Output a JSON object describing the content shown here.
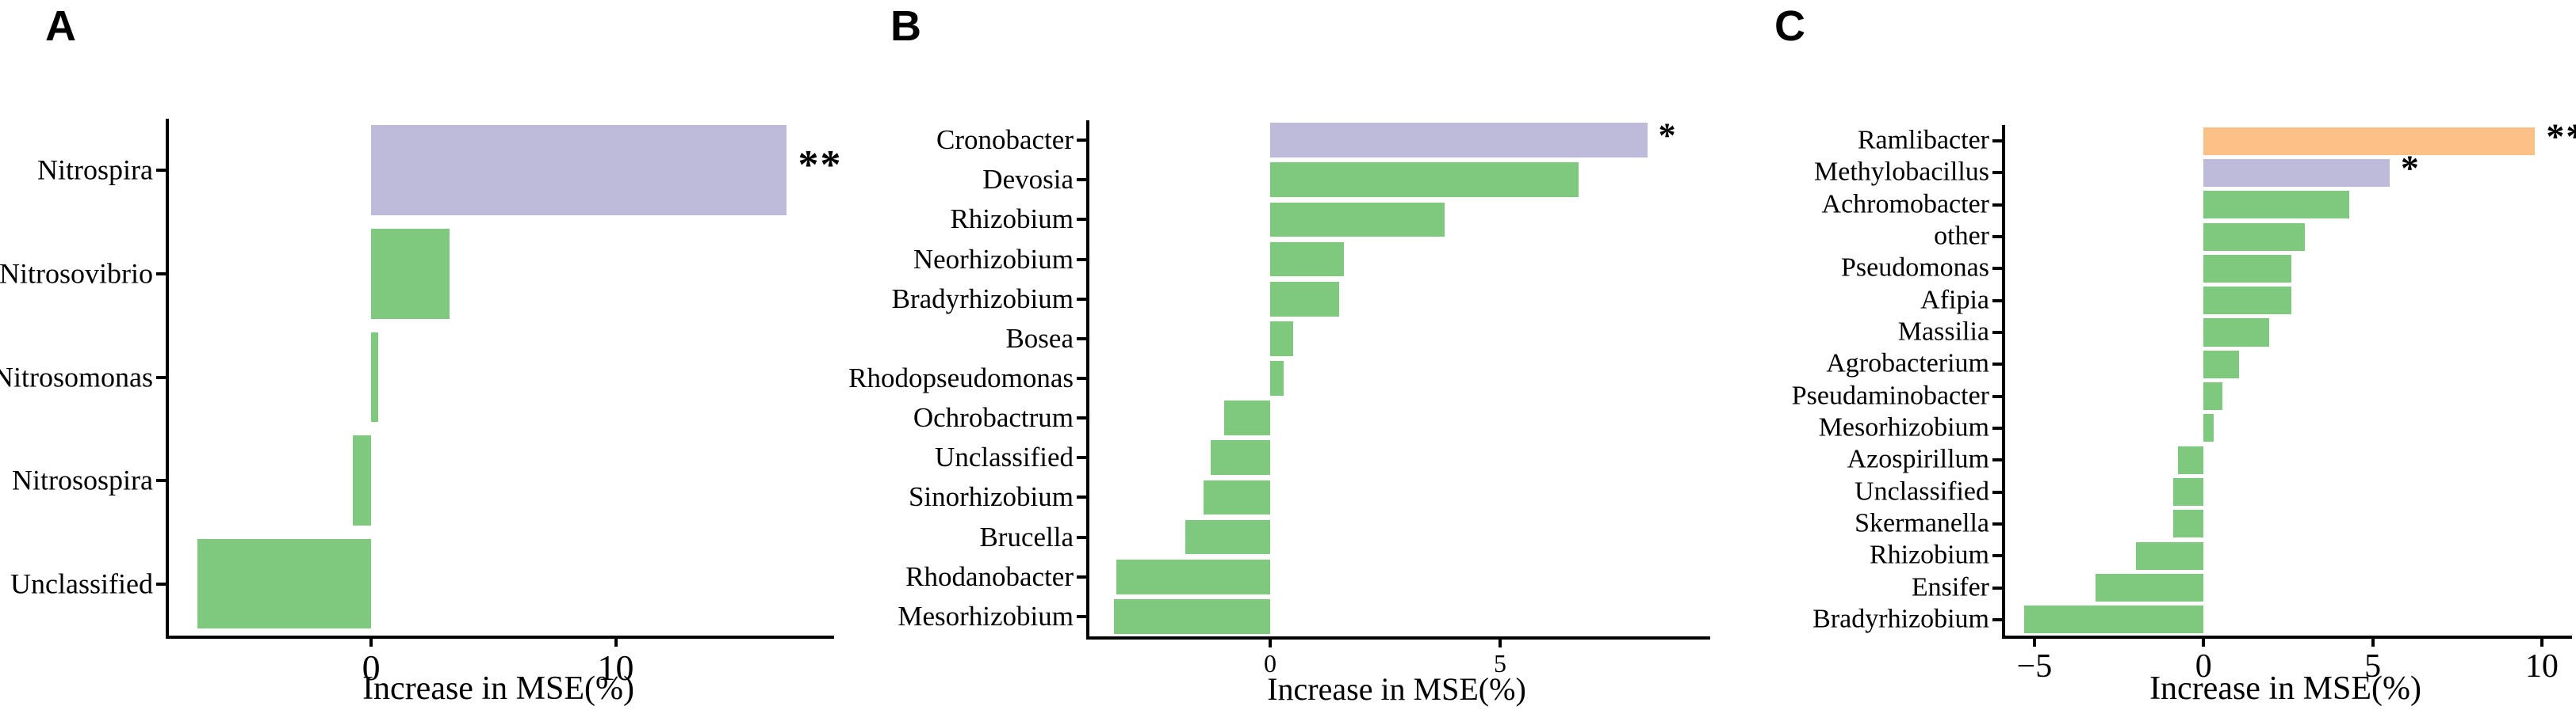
{
  "figure": {
    "x_axis_title": "Increase in MSE(%)",
    "significance_legend_note": ""
  },
  "palette": {
    "green": "#7FC97F",
    "purple": "#BEBADA",
    "orange": "#FDC086",
    "axis": "#000000"
  },
  "chart_data": [
    {
      "type": "bar",
      "panel": "A",
      "orientation": "horizontal",
      "xlabel": "Increase in MSE(%)",
      "xlim": [
        -8.4,
        18.8
      ],
      "grid": false,
      "xticks": [
        {
          "v": 0,
          "label": "0"
        },
        {
          "v": 10,
          "label": "10"
        }
      ],
      "rows": [
        {
          "label": "Nitrospira",
          "value": 17.0,
          "color": "purple",
          "sig": "**"
        },
        {
          "label": "Nitrosovibrio",
          "value": 3.2,
          "color": "green",
          "sig": ""
        },
        {
          "label": "Nitrosomonas",
          "value": 0.3,
          "color": "green",
          "sig": ""
        },
        {
          "label": "Nitrosospira",
          "value": -0.75,
          "color": "green",
          "sig": ""
        },
        {
          "label": "Unclassified",
          "value": -7.1,
          "color": "green",
          "sig": ""
        }
      ]
    },
    {
      "type": "bar",
      "panel": "B",
      "orientation": "horizontal",
      "xlabel": "Increase in MSE(%)",
      "xlim": [
        -4.0,
        9.5
      ],
      "grid": false,
      "xticks": [
        {
          "v": 0,
          "label": "0"
        },
        {
          "v": 5,
          "label": "5"
        }
      ],
      "rows": [
        {
          "label": "Cronobacter",
          "value": 8.2,
          "color": "purple",
          "sig": "*"
        },
        {
          "label": "Devosia",
          "value": 6.7,
          "color": "green",
          "sig": ""
        },
        {
          "label": "Rhizobium",
          "value": 3.8,
          "color": "green",
          "sig": ""
        },
        {
          "label": "Neorhizobium",
          "value": 1.6,
          "color": "green",
          "sig": ""
        },
        {
          "label": "Bradyrhizobium",
          "value": 1.5,
          "color": "green",
          "sig": ""
        },
        {
          "label": "Bosea",
          "value": 0.5,
          "color": "green",
          "sig": ""
        },
        {
          "label": "Rhodopseudomonas",
          "value": 0.3,
          "color": "green",
          "sig": ""
        },
        {
          "label": "Ochrobactrum",
          "value": -1.0,
          "color": "green",
          "sig": ""
        },
        {
          "label": "Unclassified",
          "value": -1.3,
          "color": "green",
          "sig": ""
        },
        {
          "label": "Sinorhizobium",
          "value": -1.45,
          "color": "green",
          "sig": ""
        },
        {
          "label": "Brucella",
          "value": -1.85,
          "color": "green",
          "sig": ""
        },
        {
          "label": "Rhodanobacter",
          "value": -3.35,
          "color": "green",
          "sig": ""
        },
        {
          "label": "Mesorhizobium",
          "value": -3.4,
          "color": "green",
          "sig": ""
        }
      ]
    },
    {
      "type": "bar",
      "panel": "C",
      "orientation": "horizontal",
      "xlabel": "Increase in MSE(%)",
      "xlim": [
        -5.96,
        10.8
      ],
      "grid": false,
      "xticks": [
        {
          "v": -5,
          "label": "−5"
        },
        {
          "v": 0,
          "label": "0"
        },
        {
          "v": 5,
          "label": "5"
        },
        {
          "v": 10,
          "label": "10"
        }
      ],
      "rows": [
        {
          "label": "Ramlibacter",
          "value": 9.8,
          "color": "orange",
          "sig": "**"
        },
        {
          "label": "Methylobacillus",
          "value": 5.5,
          "color": "purple",
          "sig": "*"
        },
        {
          "label": "Achromobacter",
          "value": 4.3,
          "color": "green",
          "sig": ""
        },
        {
          "label": "other",
          "value": 3.0,
          "color": "green",
          "sig": ""
        },
        {
          "label": "Pseudomonas",
          "value": 2.6,
          "color": "green",
          "sig": ""
        },
        {
          "label": "Afipia",
          "value": 2.6,
          "color": "green",
          "sig": ""
        },
        {
          "label": "Massilia",
          "value": 1.95,
          "color": "green",
          "sig": ""
        },
        {
          "label": "Agrobacterium",
          "value": 1.05,
          "color": "green",
          "sig": ""
        },
        {
          "label": "Pseudaminobacter",
          "value": 0.55,
          "color": "green",
          "sig": ""
        },
        {
          "label": "Mesorhizobium",
          "value": 0.3,
          "color": "green",
          "sig": ""
        },
        {
          "label": "Azospirillum",
          "value": -0.75,
          "color": "green",
          "sig": ""
        },
        {
          "label": "Unclassified",
          "value": -0.9,
          "color": "green",
          "sig": ""
        },
        {
          "label": "Skermanella",
          "value": -0.9,
          "color": "green",
          "sig": ""
        },
        {
          "label": "Rhizobium",
          "value": -2.0,
          "color": "green",
          "sig": ""
        },
        {
          "label": "Ensifer",
          "value": -3.2,
          "color": "green",
          "sig": ""
        },
        {
          "label": "Bradyrhizobium",
          "value": -5.3,
          "color": "green",
          "sig": ""
        }
      ]
    }
  ]
}
